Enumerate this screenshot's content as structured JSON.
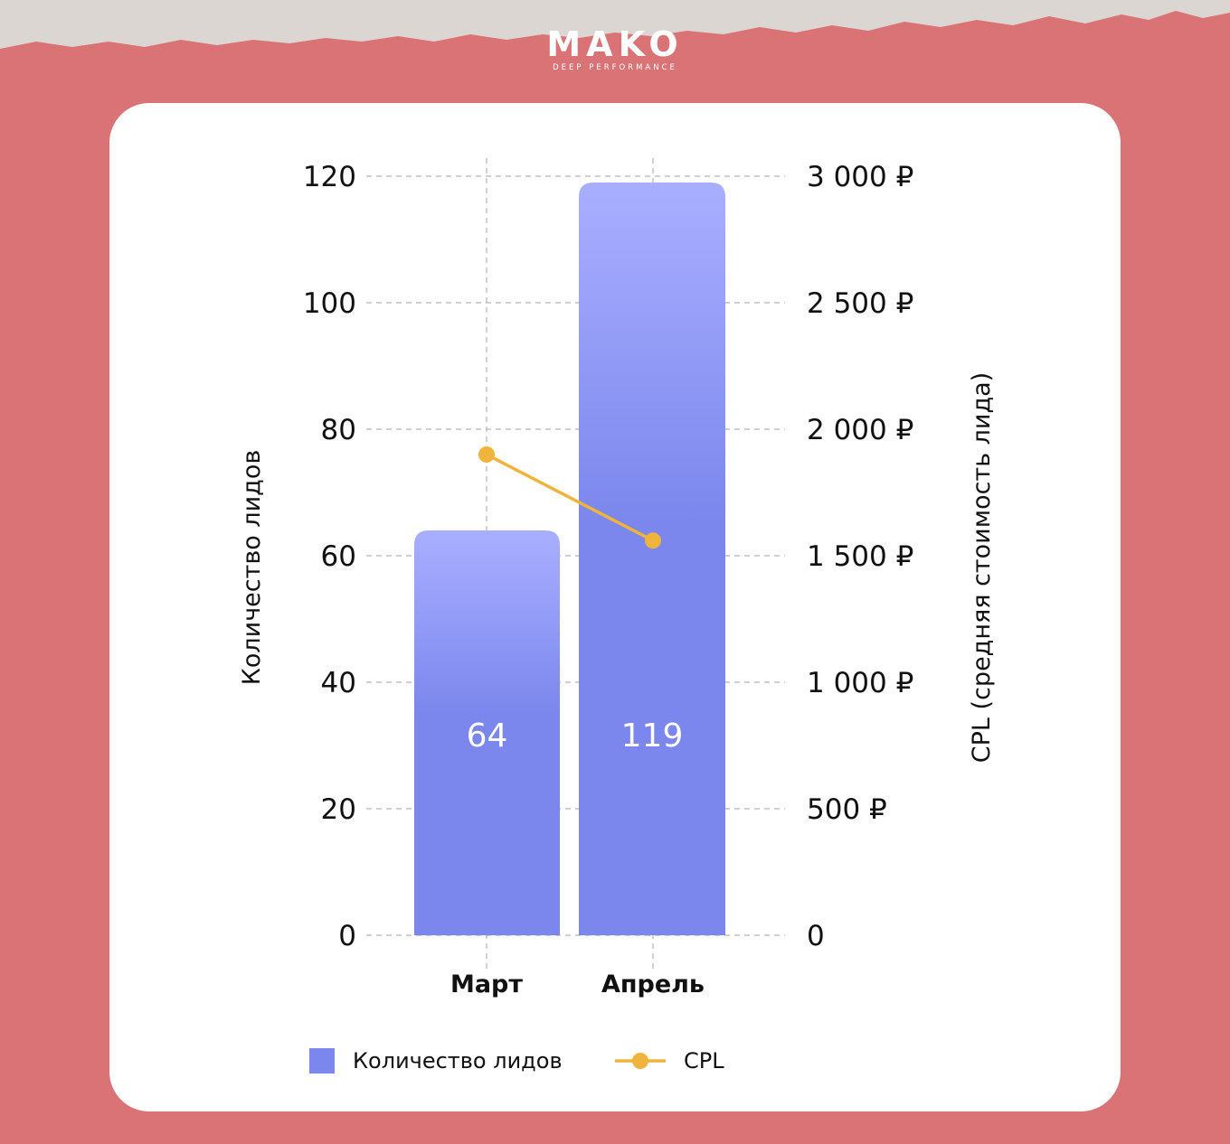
{
  "brand": {
    "name": "MAKO",
    "tagline": "DEEP PERFORMANCE"
  },
  "colors": {
    "background": "#d97375",
    "card": "#ffffff",
    "bar_top": "#a9afff",
    "bar_bottom": "#7b87ec",
    "line": "#f0b33c",
    "grid": "#b5b5b5"
  },
  "chart_data": {
    "type": "bar",
    "categories": [
      "Март",
      "Апрель"
    ],
    "series": [
      {
        "name": "Количество лидов",
        "type": "bar",
        "axis": "left",
        "values": [
          64,
          119
        ],
        "data_labels": [
          "64",
          "119"
        ]
      },
      {
        "name": "CPL",
        "type": "line",
        "axis": "right",
        "values": [
          1900,
          1560
        ]
      }
    ],
    "ylabel_left": "Количество лидов",
    "ylabel_right": "CPL (средняя стоимость лида)",
    "ylim_left": [
      0,
      120
    ],
    "ylim_right": [
      0,
      3000
    ],
    "yticks_left": [
      "0",
      "20",
      "40",
      "60",
      "80",
      "100",
      "120"
    ],
    "yticks_right": [
      "0",
      "500 ₽",
      "1 000 ₽",
      "1 500 ₽",
      "2 000 ₽",
      "2 500 ₽",
      "3 000 ₽"
    ],
    "grid": true,
    "legend_position": "bottom"
  }
}
